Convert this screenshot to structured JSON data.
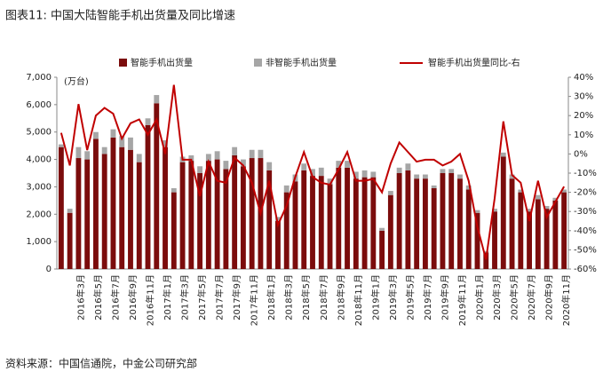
{
  "chart_data": {
    "type": "bar",
    "title": "图表11: 中国大陆智能手机出货量及同比增速",
    "unit_label": "(万台)",
    "source": "资料来源：中国信通院，中金公司研究部",
    "categories": [
      null,
      null,
      "2016年3月",
      null,
      "2016年5月",
      null,
      "2016年7月",
      null,
      "2016年9月",
      null,
      "2016年11月",
      null,
      "2017年1月",
      null,
      "2017年3月",
      null,
      "2017年5月",
      null,
      "2017年7月",
      null,
      "2017年9月",
      null,
      "2017年11月",
      null,
      "2018年1月",
      null,
      "2018年3月",
      null,
      "2018年5月",
      null,
      "2018年7月",
      null,
      "2018年9月",
      null,
      "2018年11月",
      null,
      "2019年1月",
      null,
      "2019年3月",
      null,
      "2019年5月",
      null,
      "2019年7月",
      null,
      "2019年9月",
      null,
      "2019年11月",
      null,
      "2020年1月",
      null,
      "2020年3月",
      null,
      "2020年5月",
      null,
      "2020年7月",
      null,
      "2020年9月",
      null,
      "2020年11月"
    ],
    "series": [
      {
        "name": "智能手机出货量",
        "color": "#7b0c0c",
        "values": [
          4450,
          2050,
          4050,
          4000,
          4750,
          4200,
          4800,
          4450,
          4350,
          3900,
          5250,
          6050,
          4450,
          2800,
          3900,
          3950,
          3500,
          3950,
          4000,
          3650,
          4150,
          3750,
          4050,
          4050,
          3600,
          1750,
          2800,
          3200,
          3600,
          3400,
          3400,
          3100,
          3700,
          3700,
          3300,
          3350,
          3350,
          1400,
          2700,
          3500,
          3600,
          3300,
          3300,
          2950,
          3500,
          3500,
          3300,
          2900,
          2050,
          600,
          2100,
          4100,
          3300,
          2800,
          2100,
          2550,
          2200,
          2500,
          2800
        ]
      },
      {
        "name": "非智能手机出货量",
        "color": "#a6a6a6",
        "values": [
          100,
          150,
          400,
          300,
          250,
          250,
          300,
          400,
          450,
          300,
          250,
          300,
          250,
          150,
          200,
          200,
          250,
          250,
          300,
          300,
          300,
          250,
          300,
          300,
          300,
          150,
          250,
          250,
          250,
          250,
          300,
          200,
          250,
          250,
          250,
          250,
          200,
          100,
          150,
          200,
          250,
          150,
          150,
          100,
          150,
          150,
          150,
          150,
          100,
          50,
          100,
          150,
          150,
          100,
          100,
          150,
          100,
          100,
          100
        ]
      },
      {
        "name": "智能手机出货量同比-右",
        "color": "#c00000",
        "axis": "y2",
        "values": [
          11,
          -6,
          26,
          2,
          20,
          24,
          21,
          8,
          16,
          18,
          10,
          18,
          0,
          36,
          -3,
          -3,
          -22,
          -4,
          -14,
          -15,
          -2,
          -6,
          -15,
          -31,
          -14,
          -37,
          -27,
          -12,
          1,
          -12,
          -15,
          -16,
          -8,
          1,
          -14,
          -14,
          -13,
          -20,
          -5,
          6,
          1,
          -4,
          -3,
          -3,
          -6,
          -4,
          0,
          -14,
          -38,
          -55,
          -23,
          17,
          -11,
          -15,
          -35,
          -14,
          -33,
          -25,
          -17
        ]
      }
    ],
    "ylim": [
      0,
      7000
    ],
    "yticks": [
      0,
      {
        "value": 1000,
        "label": "1,000"
      },
      {
        "value": 2000,
        "label": "2,000"
      },
      {
        "value": 3000,
        "label": "3,000"
      },
      {
        "value": 4000,
        "label": "4,000"
      },
      {
        "value": 5000,
        "label": "5,000"
      },
      {
        "value": 6000,
        "label": "6,000"
      },
      {
        "value": 7000,
        "label": "7,000"
      }
    ],
    "y2lim": [
      -60,
      40
    ],
    "y2ticks": [
      {
        "value": -60,
        "label": "-60%"
      },
      {
        "value": -50,
        "label": "-50%"
      },
      {
        "value": -40,
        "label": "-40%"
      },
      {
        "value": -30,
        "label": "-30%"
      },
      {
        "value": -20,
        "label": "-20%"
      },
      {
        "value": -10,
        "label": "-10%"
      },
      {
        "value": 0,
        "label": "0%"
      },
      {
        "value": 10,
        "label": "10%"
      },
      {
        "value": 20,
        "label": "20%"
      },
      {
        "value": 30,
        "label": "30%"
      },
      {
        "value": 40,
        "label": "40%"
      }
    ]
  }
}
